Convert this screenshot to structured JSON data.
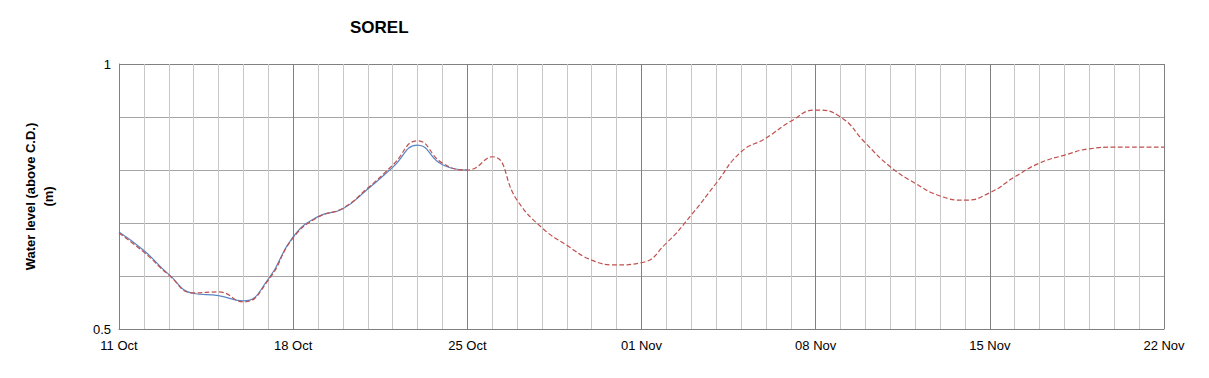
{
  "chart_data": {
    "type": "line",
    "title": "SOREL",
    "y_label": "Water level (above C.D.)\n(m)",
    "categories": [
      "11 Oct",
      null,
      null,
      null,
      null,
      null,
      null,
      "18 Oct",
      null,
      null,
      null,
      null,
      null,
      null,
      "25 Oct",
      null,
      null,
      null,
      null,
      null,
      null,
      "01 Nov",
      null,
      null,
      null,
      null,
      null,
      null,
      "08 Nov",
      null,
      null,
      null,
      null,
      null,
      null,
      "15 Nov",
      null,
      null,
      null,
      null,
      null,
      null,
      "22 Nov"
    ],
    "series": [
      {
        "color": "#c0504d",
        "line_style": "dashed",
        "values": [
          0.681,
          0.645,
          0.602,
          0.568,
          0.57,
          0.551,
          0.592,
          0.672,
          0.711,
          0.728,
          0.766,
          0.809,
          0.855,
          0.813,
          0.8,
          0.825,
          0.743,
          0.691,
          0.658,
          0.63,
          0.621,
          0.625,
          0.662,
          0.715,
          0.775,
          0.834,
          0.86,
          0.892,
          0.913,
          0.9,
          0.851,
          0.806,
          0.775,
          0.751,
          0.743,
          0.757,
          0.787,
          0.813,
          0.828,
          0.84,
          0.843,
          0.843,
          0.843
        ]
      },
      {
        "color": "#5b86c5",
        "line_style": "solid",
        "values": [
          0.683,
          0.648,
          0.603,
          0.567,
          0.563,
          0.553,
          0.594,
          0.674,
          0.712,
          0.727,
          0.764,
          0.805,
          0.847,
          0.81,
          0.8,
          null,
          null,
          null,
          null,
          null,
          null,
          null,
          null,
          null,
          null,
          null,
          null,
          null,
          null,
          null,
          null,
          null,
          null,
          null,
          null,
          null,
          null,
          null,
          null,
          null,
          null,
          null,
          null
        ]
      }
    ],
    "ylim": [
      0.5,
      1
    ],
    "yticks": [
      0.5,
      1
    ],
    "grid": true
  }
}
